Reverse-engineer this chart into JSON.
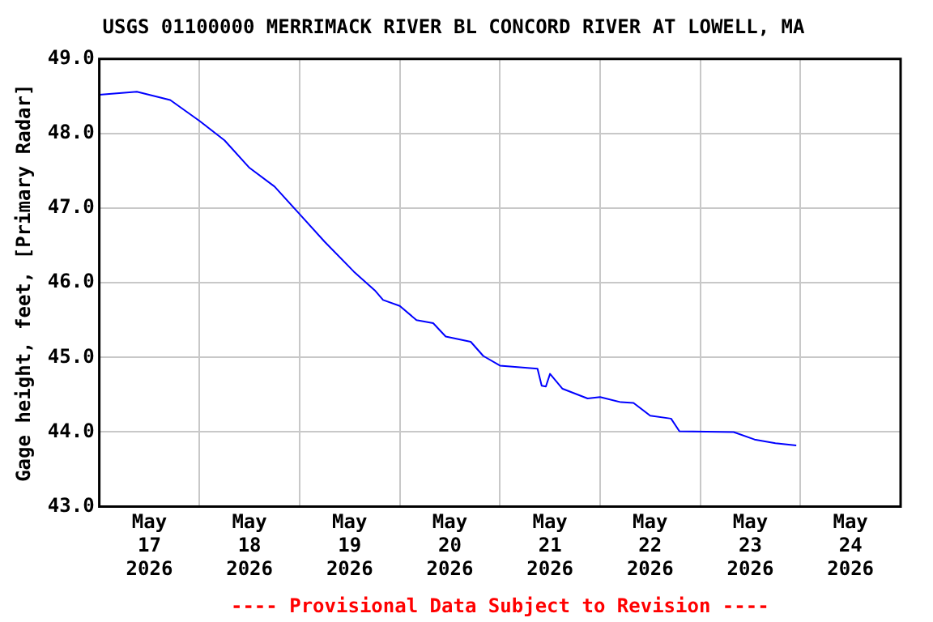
{
  "chart_data": {
    "type": "line",
    "title": "USGS 01100000 MERRIMACK RIVER BL CONCORD RIVER AT LOWELL, MA",
    "ylabel": "Gage height, feet, [Primary Radar]",
    "annotations": [
      "---- Provisional Data Subject to Revision ----"
    ],
    "x": [
      "2026-05-17T00:00",
      "2026-05-17T09:00",
      "2026-05-17T17:00",
      "2026-05-18T00:00",
      "2026-05-18T06:00",
      "2026-05-18T12:00",
      "2026-05-18T18:00",
      "2026-05-19T00:00",
      "2026-05-19T06:00",
      "2026-05-19T13:00",
      "2026-05-19T18:00",
      "2026-05-19T20:00",
      "2026-05-20T00:00",
      "2026-05-20T04:00",
      "2026-05-20T08:00",
      "2026-05-20T11:00",
      "2026-05-20T17:00",
      "2026-05-20T20:00",
      "2026-05-21T00:00",
      "2026-05-21T09:00",
      "2026-05-21T10:00",
      "2026-05-21T11:00",
      "2026-05-21T12:00",
      "2026-05-21T15:00",
      "2026-05-21T21:00",
      "2026-05-22T00:00",
      "2026-05-22T05:00",
      "2026-05-22T08:00",
      "2026-05-22T12:00",
      "2026-05-22T17:00",
      "2026-05-22T19:00",
      "2026-05-23T08:00",
      "2026-05-23T13:00",
      "2026-05-23T18:00",
      "2026-05-23T23:00"
    ],
    "series": [
      {
        "color": "#0000ff",
        "values": [
          48.52,
          48.56,
          48.45,
          48.17,
          47.91,
          47.54,
          47.29,
          46.92,
          46.55,
          46.15,
          45.9,
          45.77,
          45.69,
          45.5,
          45.46,
          45.28,
          45.21,
          45.02,
          44.89,
          44.85,
          44.62,
          44.61,
          44.78,
          44.58,
          44.45,
          44.47,
          44.4,
          44.39,
          44.22,
          44.18,
          44.01,
          44.0,
          43.9,
          43.85,
          43.82
        ]
      }
    ],
    "xlim": [
      "2026-05-17T00:00",
      "2026-05-25T00:00"
    ],
    "xticks": [
      {
        "value": "2026-05-17T12:00",
        "label": "May\n17\n2026"
      },
      {
        "value": "2026-05-18T00:00",
        "label": null
      },
      {
        "value": "2026-05-18T12:00",
        "label": "May\n18\n2026"
      },
      {
        "value": "2026-05-19T00:00",
        "label": null
      },
      {
        "value": "2026-05-19T12:00",
        "label": "May\n19\n2026"
      },
      {
        "value": "2026-05-20T00:00",
        "label": null
      },
      {
        "value": "2026-05-20T12:00",
        "label": "May\n20\n2026"
      },
      {
        "value": "2026-05-21T00:00",
        "label": null
      },
      {
        "value": "2026-05-21T12:00",
        "label": "May\n21\n2026"
      },
      {
        "value": "2026-05-22T00:00",
        "label": null
      },
      {
        "value": "2026-05-22T12:00",
        "label": "May\n22\n2026"
      },
      {
        "value": "2026-05-23T00:00",
        "label": null
      },
      {
        "value": "2026-05-23T12:00",
        "label": "May\n23\n2026"
      },
      {
        "value": "2026-05-24T00:00",
        "label": null
      },
      {
        "value": "2026-05-24T12:00",
        "label": "May\n24\n2026"
      }
    ],
    "ylim": [
      43,
      49
    ],
    "yticks": [
      {
        "value": 43,
        "label": "43.0"
      },
      {
        "value": 44,
        "label": "44.0"
      },
      {
        "value": 45,
        "label": "45.0"
      },
      {
        "value": 46,
        "label": "46.0"
      },
      {
        "value": 47,
        "label": "47.0"
      },
      {
        "value": 48,
        "label": "48.0"
      },
      {
        "value": 49,
        "label": "49.0"
      }
    ],
    "grid": true,
    "legend": false,
    "marker": "none",
    "line_style": "solid"
  }
}
